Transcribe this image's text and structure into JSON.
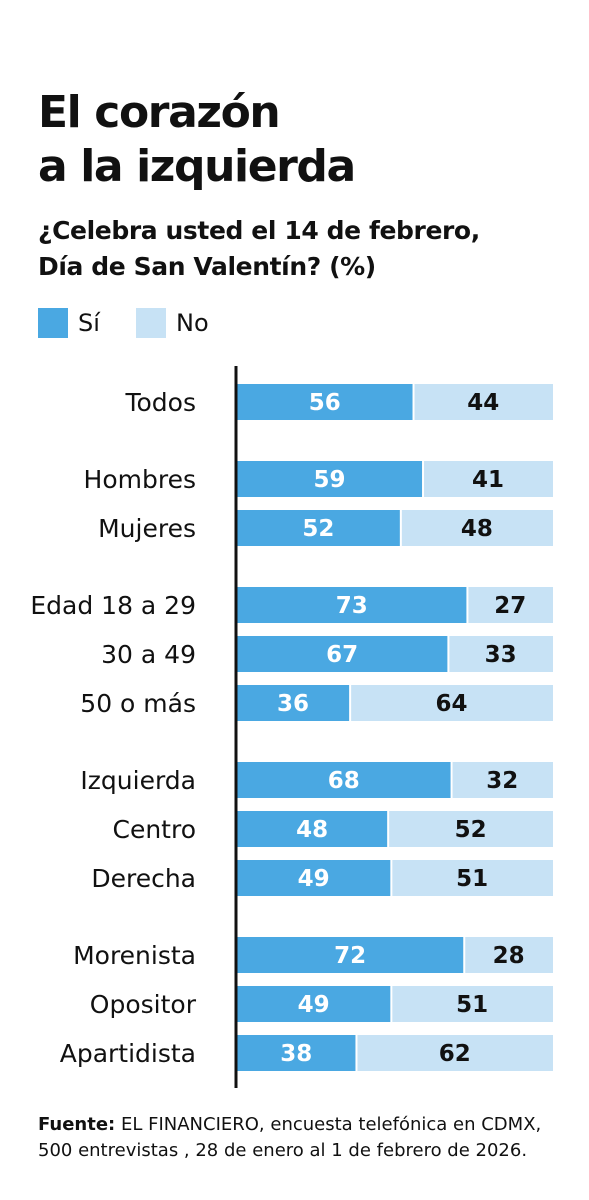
{
  "title_line1": "El corazón",
  "title_line2": "a la izquierda",
  "subtitle_line1": "¿Celebra usted el 14 de febrero,",
  "subtitle_line2": "Día de San Valentín? (%)",
  "legend": [
    {
      "label": "Sí",
      "color": "#4aa8e2"
    },
    {
      "label": "No",
      "color": "#c7e2f5"
    }
  ],
  "chart_data": {
    "type": "bar",
    "orientation": "horizontal",
    "stacked": true,
    "xlim": [
      0,
      100
    ],
    "categories": [
      "Todos",
      "Hombres",
      "Mujeres",
      "Edad 18 a 29",
      "30 a 49",
      "50 o más",
      "Izquierda",
      "Centro",
      "Derecha",
      "Morenista",
      "Opositor",
      "Apartidista"
    ],
    "groups": [
      [
        0
      ],
      [
        1,
        2
      ],
      [
        3,
        4,
        5
      ],
      [
        6,
        7,
        8
      ],
      [
        9,
        10,
        11
      ]
    ],
    "series": [
      {
        "name": "Sí",
        "color": "#4aa8e2",
        "label_color": "#ffffff",
        "values": [
          56,
          59,
          52,
          73,
          67,
          36,
          68,
          48,
          49,
          72,
          49,
          38
        ]
      },
      {
        "name": "No",
        "color": "#c7e2f5",
        "label_color": "#111111",
        "values": [
          44,
          41,
          48,
          27,
          33,
          64,
          32,
          52,
          51,
          28,
          51,
          62
        ]
      }
    ]
  },
  "source_label": "Fuente:",
  "source_text": " EL FINANCIERO, encuesta telefónica en CDMX, 500 entrevistas , 28 de enero al 1 de febrero de 2026."
}
